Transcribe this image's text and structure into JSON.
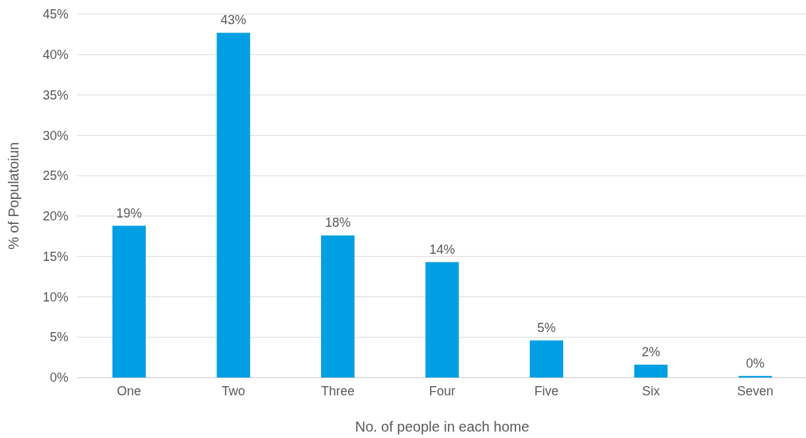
{
  "chart_data": {
    "type": "bar",
    "xlabel": "No. of people in each home",
    "ylabel": "% of Populatoiun",
    "categories": [
      "One",
      "Two",
      "Three",
      "Four",
      "Five",
      "Six",
      "Seven"
    ],
    "values": [
      18.8,
      42.7,
      17.6,
      14.3,
      4.6,
      1.6,
      0.2
    ],
    "value_labels": [
      "19%",
      "43%",
      "18%",
      "14%",
      "5%",
      "2%",
      "0%"
    ],
    "color": "#009fe3",
    "ylim": [
      0,
      45
    ],
    "yticks": [
      {
        "value": 0,
        "label": "0%"
      },
      {
        "value": 5,
        "label": "5%"
      },
      {
        "value": 10,
        "label": "10%"
      },
      {
        "value": 15,
        "label": "15%"
      },
      {
        "value": 20,
        "label": "20%"
      },
      {
        "value": 25,
        "label": "25%"
      },
      {
        "value": 30,
        "label": "30%"
      },
      {
        "value": 35,
        "label": "35%"
      },
      {
        "value": 40,
        "label": "40%"
      },
      {
        "value": 45,
        "label": "45%"
      }
    ],
    "grid": "y"
  }
}
